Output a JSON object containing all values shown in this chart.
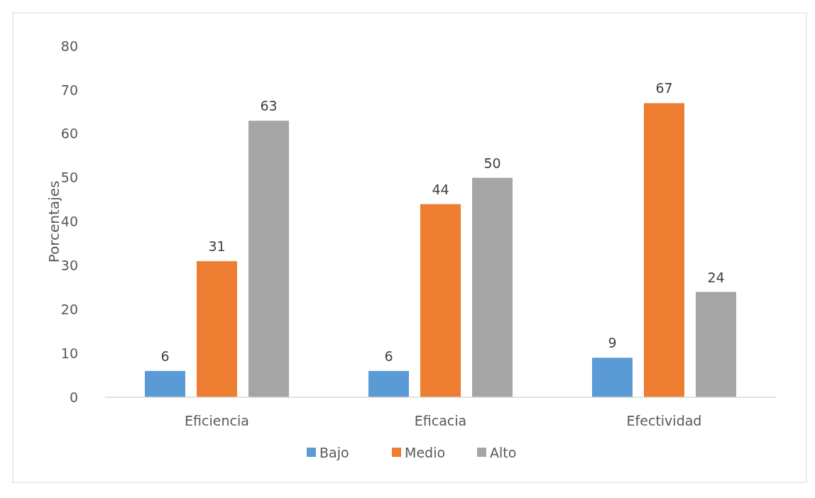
{
  "chart_data": {
    "type": "bar",
    "ylabel": "Porcentajes",
    "categories": [
      "Eficiencia",
      "Eficacia",
      "Efectividad"
    ],
    "series": [
      {
        "name": "Bajo",
        "color": "#5b9bd5",
        "values": [
          6,
          6,
          9
        ]
      },
      {
        "name": "Medio",
        "color": "#ed7d31",
        "values": [
          31,
          44,
          67
        ]
      },
      {
        "name": "Alto",
        "color": "#a5a5a5",
        "values": [
          63,
          50,
          24
        ]
      }
    ],
    "ylim": [
      0,
      80
    ],
    "yticks": [
      0,
      10,
      20,
      30,
      40,
      50,
      60,
      70,
      80
    ],
    "grid": false,
    "legend": "bottom",
    "data_labels": true
  }
}
